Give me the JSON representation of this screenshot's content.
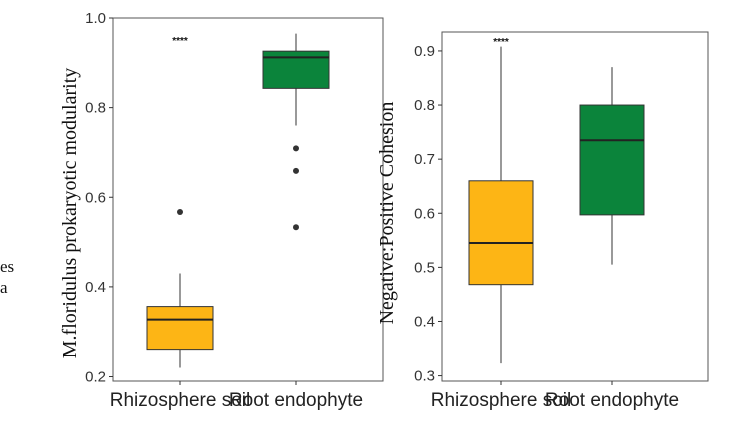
{
  "edge_fragment": [
    "es",
    "a"
  ],
  "colors": {
    "rhizosphere": "#FDB515",
    "endophyte": "#0B843B",
    "outline": "#333333",
    "panel_border": "#555555"
  },
  "chart_data": [
    {
      "type": "box",
      "ylabel": "M.floridulus prokaryotic modularity",
      "ylim": [
        0.19,
        1.0
      ],
      "yticks": [
        "0.2",
        "0.4",
        "0.6",
        "0.8",
        "1.0"
      ],
      "categories": [
        "Rhizosphere soil",
        "Root endophyte"
      ],
      "grid": false,
      "annotation": "****",
      "boxes": [
        {
          "category": "Rhizosphere soil",
          "whisker_low": 0.22,
          "q1": 0.26,
          "median": 0.327,
          "q3": 0.356,
          "whisker_high": 0.43,
          "outliers": [
            0.567
          ],
          "color": "#FDB515"
        },
        {
          "category": "Root endophyte",
          "whisker_low": 0.76,
          "q1": 0.843,
          "median": 0.912,
          "q3": 0.926,
          "whisker_high": 0.965,
          "outliers": [
            0.709,
            0.659,
            0.533
          ],
          "color": "#0B843B"
        }
      ]
    },
    {
      "type": "box",
      "ylabel": "Negative:Positive Cohesion",
      "ylim": [
        0.29,
        0.935
      ],
      "yticks": [
        "0.3",
        "0.4",
        "0.5",
        "0.6",
        "0.7",
        "0.8",
        "0.9"
      ],
      "categories": [
        "Rhizosphere soil",
        "Root endophyte"
      ],
      "grid": false,
      "annotation": "****",
      "boxes": [
        {
          "category": "Rhizosphere soil",
          "whisker_low": 0.323,
          "q1": 0.468,
          "median": 0.545,
          "q3": 0.66,
          "whisker_high": 0.908,
          "outliers": [],
          "color": "#FDB515"
        },
        {
          "category": "Root endophyte",
          "whisker_low": 0.505,
          "q1": 0.597,
          "median": 0.735,
          "q3": 0.8,
          "whisker_high": 0.87,
          "outliers": [],
          "color": "#0B843B"
        }
      ]
    }
  ]
}
